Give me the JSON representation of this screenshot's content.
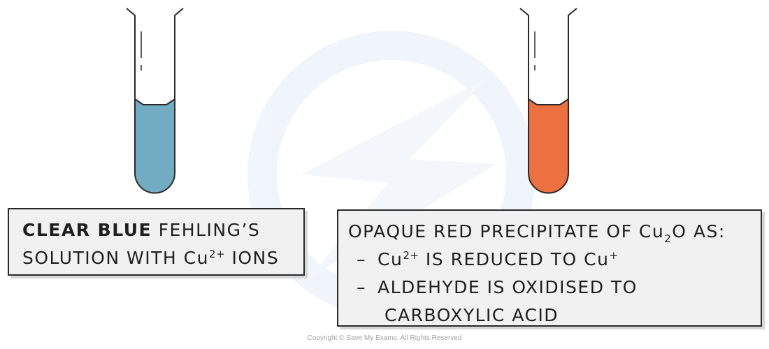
{
  "colors": {
    "blue_solution": "#72acc2",
    "red_precipitate": "#ec7040",
    "outline": "#2a2a2a",
    "box_fill": "#f1f1f1",
    "watermark": "#eef4fb"
  },
  "left_tube": {
    "contents": "blue_solution"
  },
  "right_tube": {
    "contents": "red_precipitate"
  },
  "left_label": {
    "bold_text": "CLEAR BLUE",
    "line1_rest": "FEHLING’S",
    "line2_pre": "SOLUTION WITH Cu",
    "line2_sup": "2+",
    "line2_post": "IONS"
  },
  "right_label": {
    "line1_pre": "OPAQUE RED PRECIPITATE OF Cu",
    "line1_sub": "2",
    "line1_post": "O AS:",
    "dash": "–",
    "line2_pre": "Cu",
    "line2_sup": "2+",
    "line2_mid": "IS REDUCED TO Cu",
    "line2_sup2": "+",
    "line3": "ALDEHYDE IS OXIDISED TO",
    "line4": "CARBOXYLIC ACID"
  },
  "copyright": "Copyright © Save My Exams. All Rights Reserved"
}
